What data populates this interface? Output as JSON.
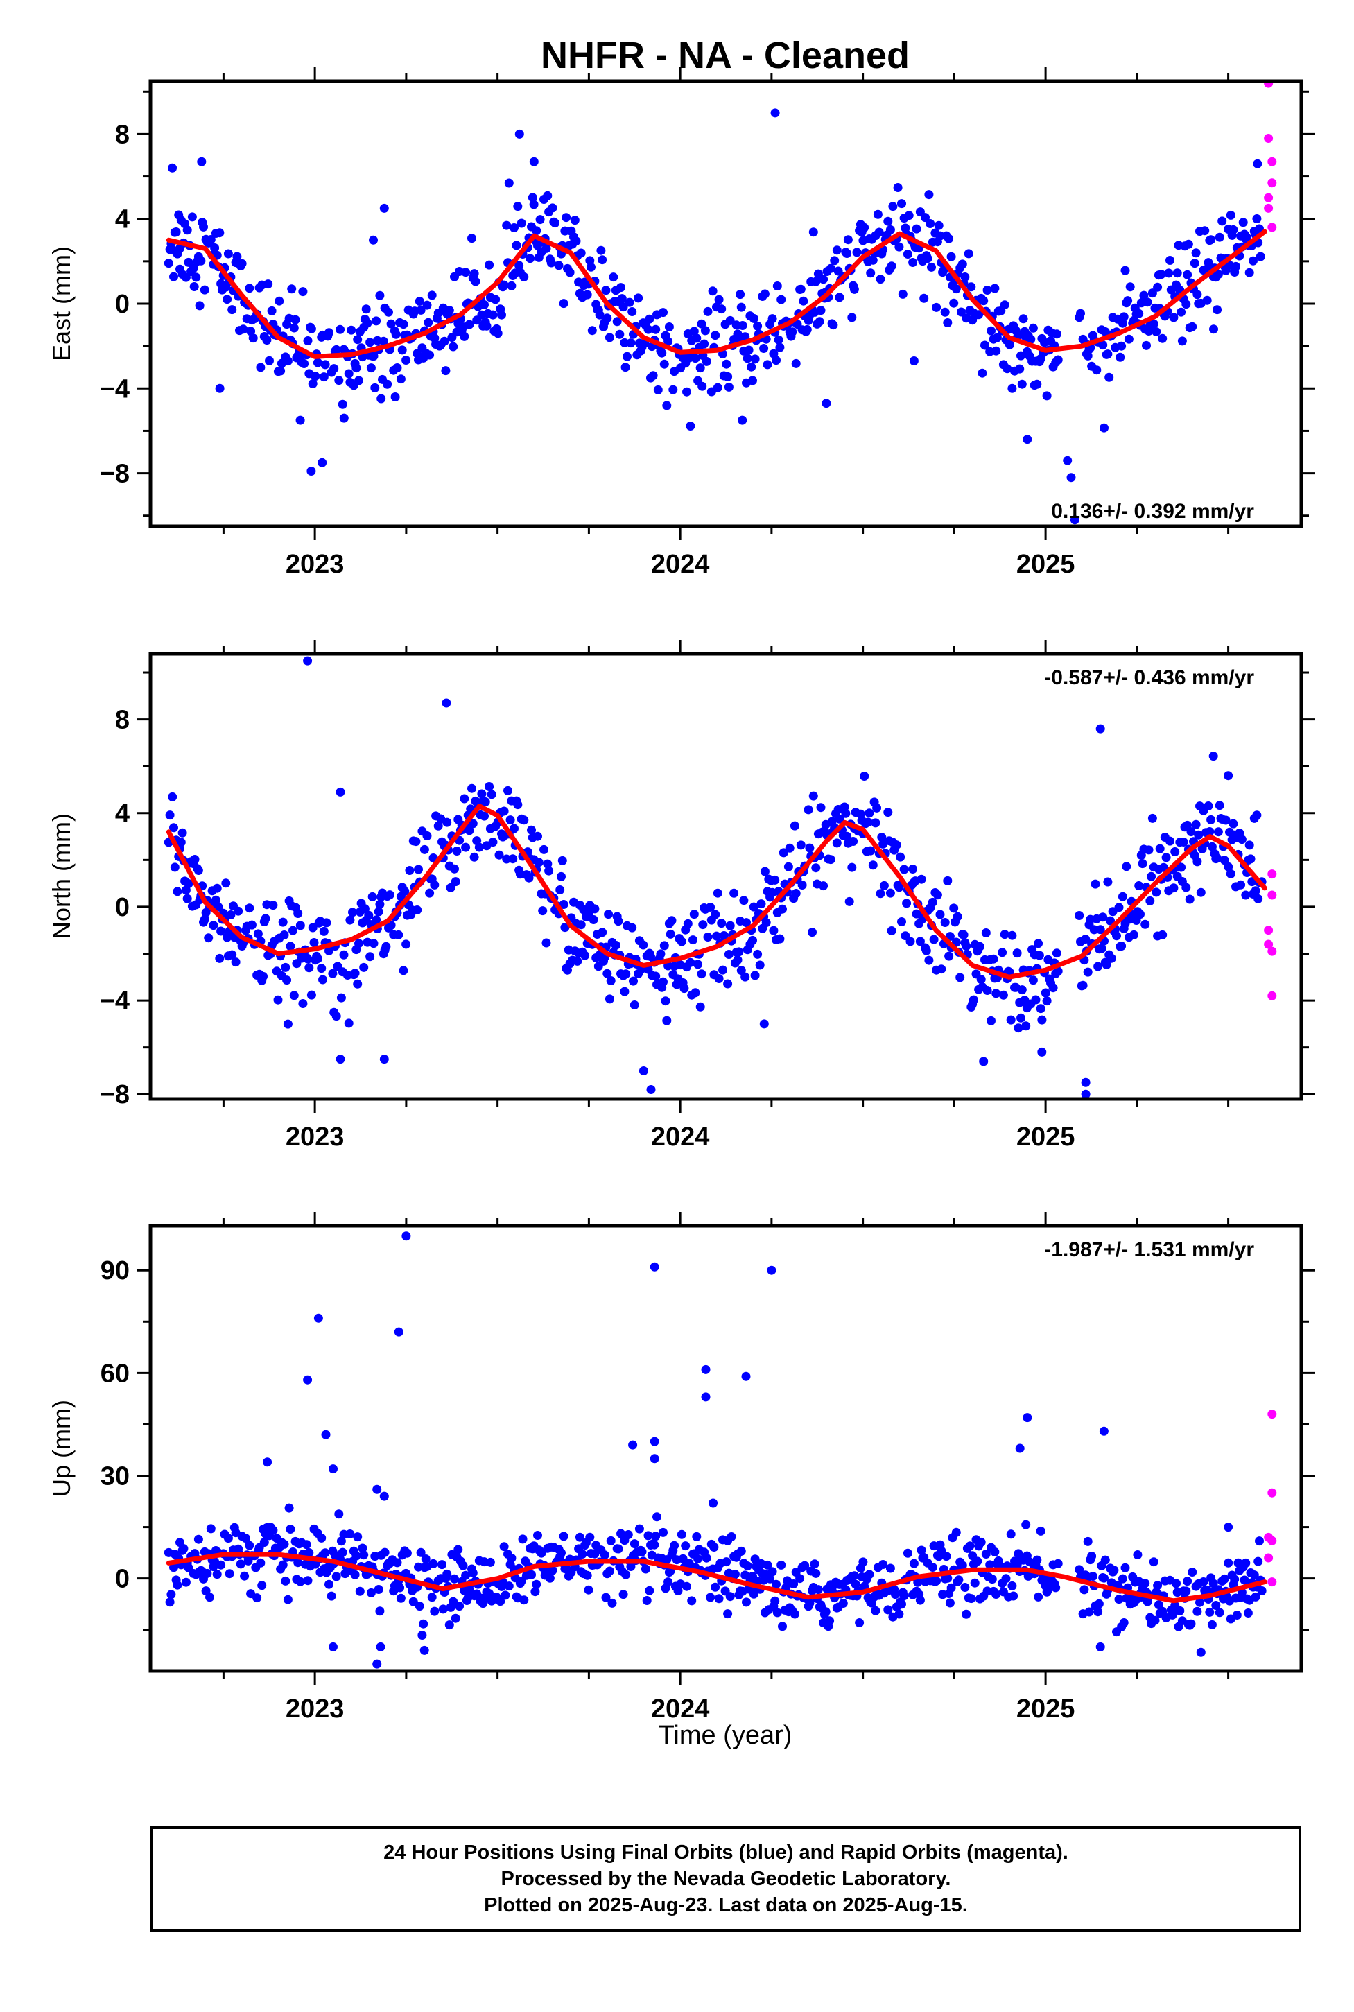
{
  "title": "NHFR  - NA - Cleaned",
  "chart_data": [
    {
      "type": "scatter",
      "ylabel": "East (mm)",
      "xlabel": "",
      "xlim": [
        2022.55,
        2025.7
      ],
      "ylim": [
        -10.5,
        10.5
      ],
      "yticks": [
        -8,
        -4,
        0,
        4,
        8
      ],
      "xticks": [
        2023,
        2024,
        2025
      ],
      "rate_label": "0.136+/- 0.392 mm/yr",
      "rate_position": "bottom-right",
      "fit": [
        [
          2022.6,
          3.0
        ],
        [
          2022.7,
          2.6
        ],
        [
          2022.8,
          0.4
        ],
        [
          2022.9,
          -1.6
        ],
        [
          2023.0,
          -2.5
        ],
        [
          2023.1,
          -2.4
        ],
        [
          2023.2,
          -2.0
        ],
        [
          2023.3,
          -1.4
        ],
        [
          2023.4,
          -0.5
        ],
        [
          2023.5,
          1.0
        ],
        [
          2023.6,
          3.2
        ],
        [
          2023.7,
          2.4
        ],
        [
          2023.8,
          0.0
        ],
        [
          2023.9,
          -1.6
        ],
        [
          2024.0,
          -2.3
        ],
        [
          2024.1,
          -2.2
        ],
        [
          2024.2,
          -1.7
        ],
        [
          2024.3,
          -0.9
        ],
        [
          2024.4,
          0.4
        ],
        [
          2024.5,
          2.2
        ],
        [
          2024.6,
          3.3
        ],
        [
          2024.7,
          2.5
        ],
        [
          2024.8,
          0.2
        ],
        [
          2024.9,
          -1.6
        ],
        [
          2025.0,
          -2.2
        ],
        [
          2025.1,
          -2.0
        ],
        [
          2025.2,
          -1.4
        ],
        [
          2025.3,
          -0.6
        ],
        [
          2025.4,
          0.8
        ],
        [
          2025.5,
          2.1
        ],
        [
          2025.6,
          3.4
        ]
      ],
      "final_points": [
        [
          2022.61,
          6.4
        ],
        [
          2022.63,
          2.6
        ],
        [
          2022.67,
          0.8
        ],
        [
          2022.69,
          6.7
        ],
        [
          2022.74,
          -4.0
        ],
        [
          2022.9,
          -3.2
        ],
        [
          2022.96,
          -5.5
        ],
        [
          2022.99,
          -7.9
        ],
        [
          2023.02,
          -7.5
        ],
        [
          2023.08,
          -5.4
        ],
        [
          2023.16,
          3.0
        ],
        [
          2023.19,
          4.5
        ],
        [
          2023.22,
          -4.4
        ],
        [
          2023.56,
          8.0
        ],
        [
          2023.6,
          6.7
        ],
        [
          2023.85,
          -3.0
        ],
        [
          2024.06,
          -3.9
        ],
        [
          2024.17,
          -5.5
        ],
        [
          2024.26,
          9.0
        ],
        [
          2024.4,
          -4.7
        ],
        [
          2024.64,
          -2.7
        ],
        [
          2024.95,
          -6.4
        ],
        [
          2025.07,
          -8.2
        ],
        [
          2025.06,
          -7.4
        ],
        [
          2025.08,
          -10.2
        ],
        [
          2025.46,
          -1.2
        ],
        [
          2025.58,
          6.6
        ]
      ],
      "rapid_points": [
        [
          2025.61,
          10.4
        ],
        [
          2025.61,
          7.8
        ],
        [
          2025.62,
          6.7
        ],
        [
          2025.62,
          5.7
        ],
        [
          2025.61,
          5.0
        ],
        [
          2025.61,
          4.5
        ],
        [
          2025.62,
          3.6
        ]
      ]
    },
    {
      "type": "scatter",
      "ylabel": "North (mm)",
      "xlabel": "",
      "xlim": [
        2022.55,
        2025.7
      ],
      "ylim": [
        -8.2,
        10.8
      ],
      "yticks": [
        -8,
        -4,
        0,
        4,
        8
      ],
      "xticks": [
        2023,
        2024,
        2025
      ],
      "rate_label": "-0.587+/- 0.436 mm/yr",
      "rate_position": "top-right",
      "fit": [
        [
          2022.6,
          3.2
        ],
        [
          2022.7,
          0.2
        ],
        [
          2022.8,
          -1.3
        ],
        [
          2022.9,
          -2.0
        ],
        [
          2023.0,
          -1.8
        ],
        [
          2023.1,
          -1.4
        ],
        [
          2023.2,
          -0.6
        ],
        [
          2023.3,
          1.2
        ],
        [
          2023.4,
          3.3
        ],
        [
          2023.45,
          4.3
        ],
        [
          2023.5,
          3.9
        ],
        [
          2023.6,
          1.6
        ],
        [
          2023.7,
          -0.8
        ],
        [
          2023.8,
          -2.0
        ],
        [
          2023.9,
          -2.5
        ],
        [
          2024.0,
          -2.2
        ],
        [
          2024.1,
          -1.7
        ],
        [
          2024.2,
          -0.8
        ],
        [
          2024.3,
          0.9
        ],
        [
          2024.4,
          2.8
        ],
        [
          2024.45,
          3.6
        ],
        [
          2024.5,
          3.3
        ],
        [
          2024.6,
          1.3
        ],
        [
          2024.7,
          -1.0
        ],
        [
          2024.8,
          -2.5
        ],
        [
          2024.9,
          -3.0
        ],
        [
          2025.0,
          -2.7
        ],
        [
          2025.1,
          -2.1
        ],
        [
          2025.2,
          -0.6
        ],
        [
          2025.3,
          1.0
        ],
        [
          2025.4,
          2.5
        ],
        [
          2025.45,
          3.0
        ],
        [
          2025.5,
          2.6
        ],
        [
          2025.6,
          0.8
        ]
      ],
      "final_points": [
        [
          2022.98,
          10.5
        ],
        [
          2023.07,
          4.9
        ],
        [
          2023.07,
          -6.5
        ],
        [
          2023.19,
          -6.5
        ],
        [
          2023.36,
          8.7
        ],
        [
          2023.9,
          -7.0
        ],
        [
          2023.92,
          -7.8
        ],
        [
          2024.23,
          -5.0
        ],
        [
          2025.15,
          7.6
        ],
        [
          2025.11,
          -7.5
        ],
        [
          2025.11,
          -8.0
        ],
        [
          2024.99,
          -6.2
        ],
        [
          2025.5,
          5.6
        ]
      ],
      "rapid_points": [
        [
          2025.62,
          1.4
        ],
        [
          2025.62,
          0.5
        ],
        [
          2025.61,
          -1.0
        ],
        [
          2025.61,
          -1.6
        ],
        [
          2025.62,
          -1.9
        ],
        [
          2025.62,
          -3.8
        ]
      ]
    },
    {
      "type": "scatter",
      "ylabel": "Up (mm)",
      "xlabel": "Time (year)",
      "xlim": [
        2022.55,
        2025.7
      ],
      "ylim": [
        -27,
        103
      ],
      "yticks": [
        0,
        30,
        60,
        90
      ],
      "xticks": [
        2023,
        2024,
        2025
      ],
      "rate_label": "-1.987+/- 1.531 mm/yr",
      "rate_position": "top-right",
      "fit": [
        [
          2022.6,
          4.5
        ],
        [
          2022.75,
          7.0
        ],
        [
          2022.9,
          7.0
        ],
        [
          2023.05,
          5.0
        ],
        [
          2023.2,
          1.0
        ],
        [
          2023.35,
          -3.0
        ],
        [
          2023.5,
          0.0
        ],
        [
          2023.6,
          3.5
        ],
        [
          2023.75,
          5.0
        ],
        [
          2023.9,
          5.0
        ],
        [
          2024.05,
          2.0
        ],
        [
          2024.2,
          -2.0
        ],
        [
          2024.35,
          -5.5
        ],
        [
          2024.5,
          -4.0
        ],
        [
          2024.65,
          0.5
        ],
        [
          2024.8,
          2.5
        ],
        [
          2024.95,
          2.5
        ],
        [
          2025.05,
          0.5
        ],
        [
          2025.2,
          -3.5
        ],
        [
          2025.35,
          -6.5
        ],
        [
          2025.45,
          -5.0
        ],
        [
          2025.6,
          -1.0
        ]
      ],
      "final_points": [
        [
          2022.98,
          58.0
        ],
        [
          2023.01,
          76.0
        ],
        [
          2023.03,
          42.0
        ],
        [
          2023.05,
          32.0
        ],
        [
          2022.87,
          34.0
        ],
        [
          2023.17,
          26.0
        ],
        [
          2023.19,
          24.0
        ],
        [
          2023.23,
          72.0
        ],
        [
          2023.25,
          100.0
        ],
        [
          2023.17,
          -25.0
        ],
        [
          2023.18,
          -20.0
        ],
        [
          2023.05,
          -20.0
        ],
        [
          2023.3,
          -21.0
        ],
        [
          2023.87,
          39.0
        ],
        [
          2023.93,
          91.0
        ],
        [
          2023.93,
          40.0
        ],
        [
          2023.93,
          35.0
        ],
        [
          2024.07,
          61.0
        ],
        [
          2024.07,
          53.0
        ],
        [
          2024.18,
          59.0
        ],
        [
          2024.25,
          90.0
        ],
        [
          2024.09,
          22.0
        ],
        [
          2024.13,
          11.0
        ],
        [
          2024.93,
          38.0
        ],
        [
          2024.95,
          47.0
        ],
        [
          2025.16,
          43.0
        ],
        [
          2025.15,
          -20.0
        ],
        [
          2025.5,
          15.0
        ]
      ],
      "rapid_points": [
        [
          2025.62,
          48.0
        ],
        [
          2025.62,
          25.0
        ],
        [
          2025.61,
          12.0
        ],
        [
          2025.62,
          11.0
        ],
        [
          2025.61,
          6.0
        ],
        [
          2025.62,
          -1.0
        ]
      ]
    }
  ],
  "colors": {
    "final": "#0000ff",
    "rapid": "#ff00ff",
    "fit": "#ff0000",
    "axis": "#000000"
  },
  "footer": {
    "line1": "24 Hour Positions Using Final Orbits (blue) and Rapid Orbits (magenta).",
    "line2": "Processed by the Nevada Geodetic Laboratory.",
    "line3": "Plotted on 2025-Aug-23. Last data on 2025-Aug-15."
  }
}
